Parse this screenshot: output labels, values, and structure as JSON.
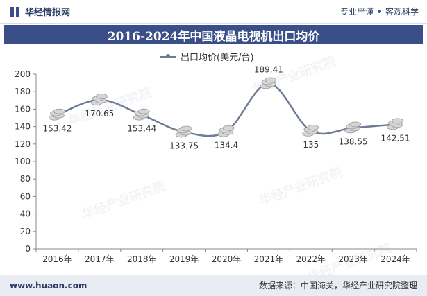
{
  "header": {
    "brand": "华经情报网",
    "tagline_left": "专业严谨",
    "tagline_right": "客观科学"
  },
  "title": "2016-2024年中国液晶电视机出口均价",
  "footer": {
    "url": "www.huaon.com",
    "source": "数据来源：中国海关，华经产业研究院整理"
  },
  "watermark": "华经产业研究院",
  "colors": {
    "line": "#6d7b97",
    "title_bg": "#3a4f87",
    "coin": "#d6d6d6"
  },
  "chart_data": {
    "type": "line",
    "categories": [
      "2016年",
      "2017年",
      "2018年",
      "2019年",
      "2020年",
      "2021年",
      "2022年",
      "2023年",
      "2024年"
    ],
    "series": [
      {
        "name": "出口均价(美元/台)",
        "values": [
          153.42,
          170.65,
          153.44,
          133.75,
          134.4,
          189.41,
          135,
          138.55,
          142.51
        ]
      }
    ],
    "data_labels": [
      "153.42",
      "170.65",
      "153.44",
      "133.75",
      "134.4",
      "189.41",
      "135",
      "138.55",
      "142.51"
    ],
    "ylim": [
      0,
      200
    ],
    "yticks": [
      "0",
      "20",
      "40",
      "60",
      "80",
      "100",
      "120",
      "140",
      "160",
      "180",
      "200"
    ],
    "grid": false,
    "legend": "top-center",
    "marker": "coin-stack"
  }
}
